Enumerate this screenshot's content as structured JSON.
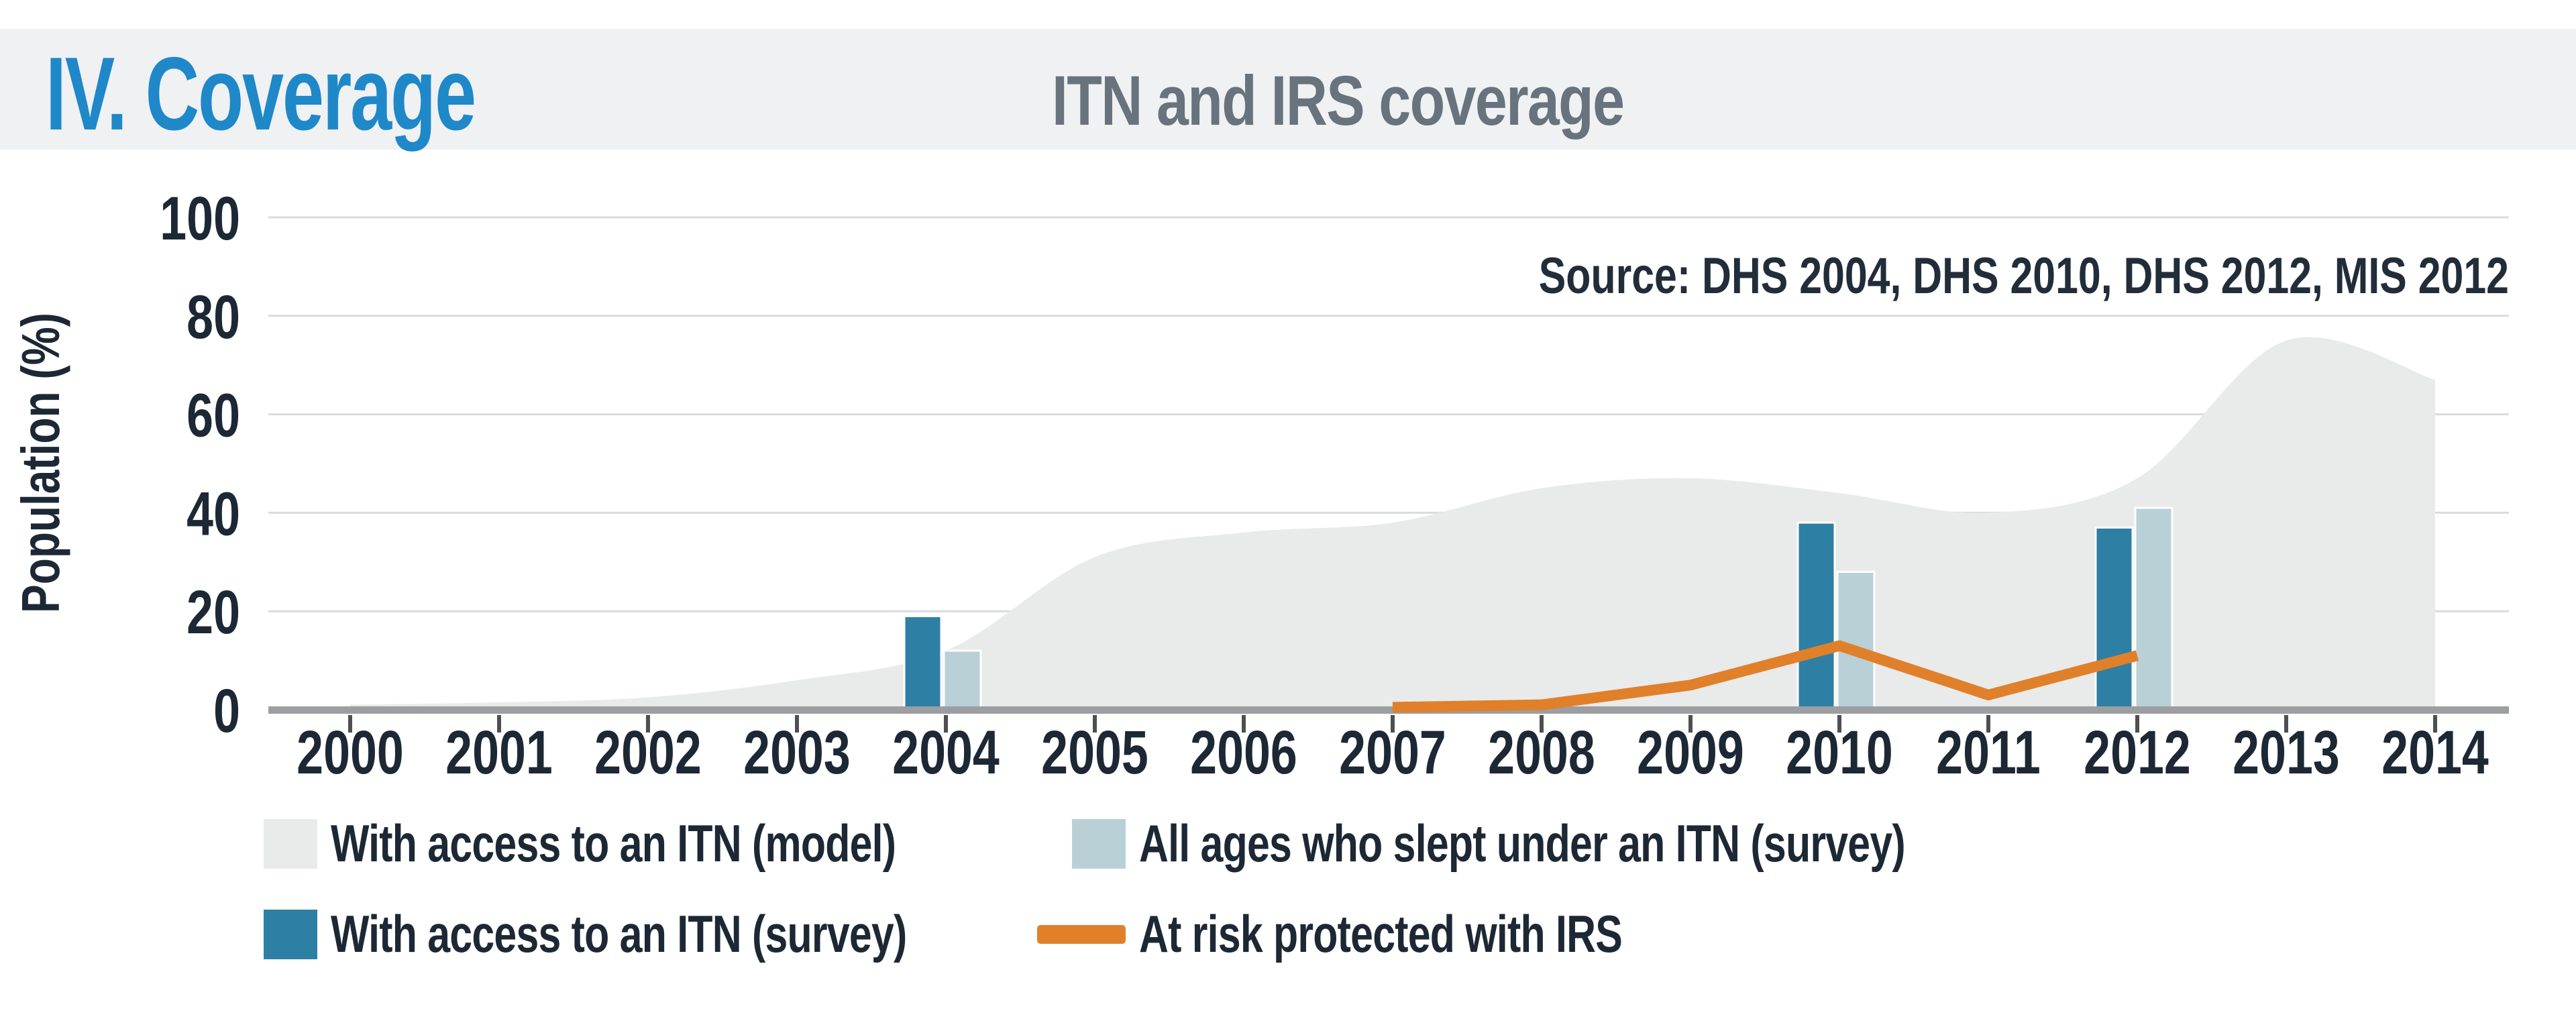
{
  "header": {
    "section_title": "IV. Coverage",
    "chart_title": "ITN and IRS coverage"
  },
  "chart_data": {
    "type": "area+bar+line",
    "title": "ITN and IRS coverage",
    "xlabel": "",
    "ylabel": "Population (%)",
    "ylim": [
      0,
      100
    ],
    "yticks": [
      0,
      20,
      40,
      60,
      80,
      100
    ],
    "years": [
      2000,
      2001,
      2002,
      2003,
      2004,
      2005,
      2006,
      2007,
      2008,
      2009,
      2010,
      2011,
      2012,
      2013,
      2014
    ],
    "source_note": "Source: DHS 2004, DHS 2010, DHS 2012, MIS 2012",
    "grid": "horizontal",
    "legend_position": "bottom",
    "series": [
      {
        "name": "With access to an ITN (model)",
        "type": "area",
        "color": "#e9eaea",
        "x": [
          2000,
          2001,
          2002,
          2003,
          2004,
          2005,
          2006,
          2007,
          2008,
          2009,
          2010,
          2011,
          2012,
          2013,
          2014
        ],
        "values": [
          1,
          1.5,
          2.5,
          6,
          12,
          31,
          36,
          38,
          45,
          47,
          44,
          40,
          47,
          75,
          67
        ]
      },
      {
        "name": "With access to an ITN (survey)",
        "type": "bar",
        "color": "#2e7fa4",
        "x": [
          2004,
          2010,
          2012
        ],
        "values": [
          19,
          38,
          37
        ]
      },
      {
        "name": "All ages who slept under an ITN (survey)",
        "type": "bar",
        "color": "#b9d1d6",
        "x": [
          2004,
          2010,
          2012
        ],
        "values": [
          12,
          28,
          41
        ]
      },
      {
        "name": "At risk protected with IRS",
        "type": "line",
        "color": "#e0802a",
        "x": [
          2007,
          2008,
          2009,
          2010,
          2011,
          2012
        ],
        "values": [
          0.5,
          1,
          5,
          13,
          3,
          11
        ]
      }
    ],
    "legend": {
      "items": [
        {
          "label": "With access to an ITN (model)",
          "swatch": "square",
          "color": "#e9eaea"
        },
        {
          "label": "All ages who slept under an ITN (survey)",
          "swatch": "square",
          "color": "#b9d1d6"
        },
        {
          "label": "With access to an ITN (survey)",
          "swatch": "square",
          "color": "#2e7fa4"
        },
        {
          "label": "At risk protected with IRS",
          "swatch": "line",
          "color": "#e0802a"
        }
      ]
    }
  },
  "colors": {
    "band_bg": "#eff1f3",
    "section_title": "#1e88c9",
    "chart_title": "#68737d",
    "grid_line": "#dadbdc",
    "axis_line": "#9c9ea1",
    "tick_mark": "#4f4f51",
    "text_dark": "#1d2835",
    "source_text": "#222d3a"
  }
}
